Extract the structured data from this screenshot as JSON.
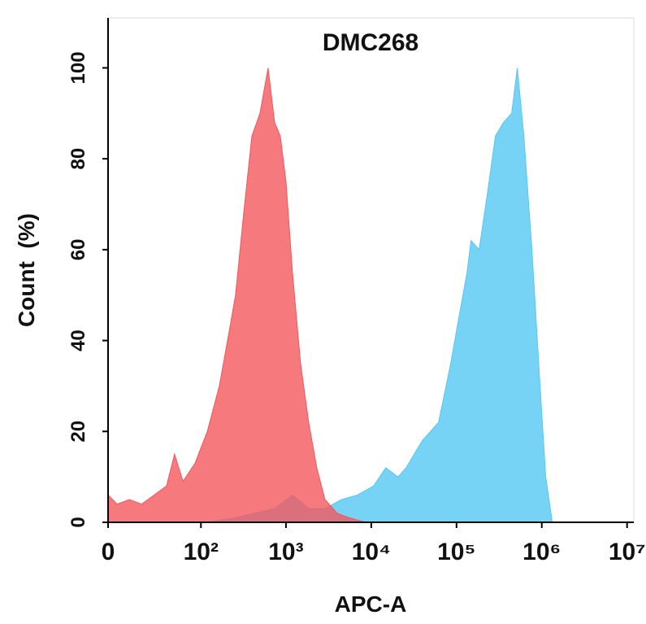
{
  "chart_data": {
    "type": "histogram-overlay",
    "title": "DMC268",
    "xlabel": "APC-A",
    "ylabel": "Count  (%)",
    "xscale": "biexponential",
    "xlim": [
      0,
      12000000
    ],
    "xticks": [
      0,
      {
        "value": 100,
        "label": "10²"
      },
      {
        "value": 1000,
        "label": "10³"
      },
      {
        "value": 10000,
        "label": "10⁴"
      },
      {
        "value": 100000,
        "label": "10⁵"
      },
      {
        "value": 1000000,
        "label": "10⁶"
      },
      {
        "value": 10000000,
        "label": "10⁷"
      }
    ],
    "ylim": [
      0,
      111
    ],
    "yticks": [
      0,
      20,
      40,
      60,
      80,
      100
    ],
    "series": [
      {
        "color": "#55c8f2",
        "x": [
          0,
          119,
          256,
          735,
          1191,
          1845,
          2868,
          4454,
          6890,
          10660,
          14800,
          20600,
          25600,
          39800,
          61600,
          85600,
          106400,
          132800,
          148000,
          184000,
          229000,
          285700,
          355600,
          442800,
          516600,
          616000,
          766000,
          954000,
          1112000,
          1327000
        ],
        "values": [
          0,
          0,
          1,
          3,
          6,
          3,
          3,
          5,
          6,
          8,
          12,
          10,
          12,
          18,
          22,
          35,
          45,
          55,
          62,
          60,
          72,
          85,
          88,
          90,
          100,
          85,
          60,
          30,
          10,
          0
        ]
      },
      {
        "color": "#f2575c",
        "x": [
          0,
          4,
          10,
          17,
          26,
          38,
          48,
          61,
          85,
          119,
          165,
          206,
          256,
          319,
          398,
          495,
          617,
          735,
          858,
          1000,
          1191,
          1482,
          1845,
          2297,
          2868,
          3990,
          5540,
          8560
        ],
        "values": [
          6,
          4,
          5,
          4,
          6,
          8,
          15,
          9,
          13,
          20,
          30,
          40,
          50,
          68,
          85,
          90,
          100,
          88,
          85,
          75,
          55,
          35,
          22,
          12,
          5,
          2,
          1,
          0
        ]
      }
    ]
  }
}
